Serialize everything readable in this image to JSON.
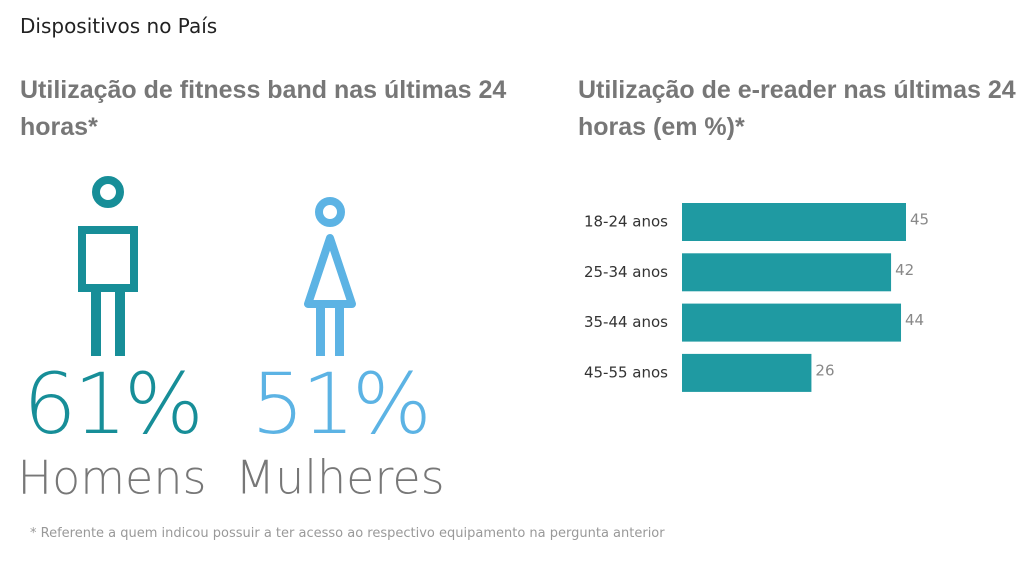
{
  "header": {
    "title": "Dispositivos no País"
  },
  "chart_data": [
    {
      "type": "pictogram",
      "title": "Utilização de fitness band nas últimas 24 horas*",
      "categories": [
        "Homens",
        "Mulheres"
      ],
      "values": [
        61,
        51
      ],
      "value_labels": [
        "61%",
        "51%"
      ],
      "colors": [
        "#178e98",
        "#5cb3e4"
      ]
    },
    {
      "type": "bar",
      "title": "Utilização de e-reader nas últimas 24 horas (em %)*",
      "categories": [
        "18-24 anos",
        "25-34 anos",
        "35-44 anos",
        "45-55 anos"
      ],
      "values": [
        45,
        42,
        44,
        26
      ],
      "color": "#1f9aa2"
    }
  ],
  "footnote": "* Referente a quem indicou possuir a ter acesso ao respectivo equipamento na pergunta anterior"
}
